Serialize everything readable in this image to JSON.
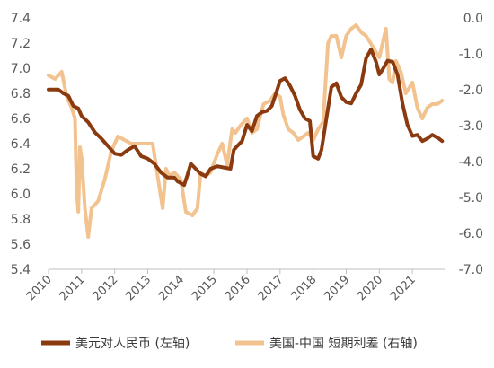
{
  "chart_data": {
    "type": "line",
    "title": "",
    "xlabel": "",
    "ylabel": "",
    "y2label": "",
    "grid": false,
    "legend_position": "bottom",
    "xlim": [
      2010,
      2022.0
    ],
    "ylim": [
      5.4,
      7.4
    ],
    "y2lim": [
      -7.0,
      0.0
    ],
    "x_ticks": [
      2010,
      2011,
      2012,
      2013,
      2014,
      2015,
      2016,
      2017,
      2018,
      2019,
      2020,
      2021
    ],
    "x_tick_labels": [
      "2010",
      "2011",
      "2012",
      "2013",
      "2014",
      "2015",
      "2016",
      "2017",
      "2018",
      "2019",
      "2020",
      "2021"
    ],
    "y_ticks": [
      5.4,
      5.6,
      5.8,
      6.0,
      6.2,
      6.4,
      6.6,
      6.8,
      7.0,
      7.2,
      7.4
    ],
    "y_tick_labels": [
      "5.4",
      "5.6",
      "5.8",
      "6.0",
      "6.2",
      "6.4",
      "6.6",
      "6.8",
      "7.0",
      "7.2",
      "7.4"
    ],
    "y2_ticks": [
      0.0,
      -1.0,
      -2.0,
      -3.0,
      -4.0,
      -5.0,
      -6.0,
      -7.0
    ],
    "y2_tick_labels": [
      "0.0",
      "-1.0",
      "-2.0",
      "-3.0",
      "-4.0",
      "-5.0",
      "-6.0",
      "-7.0"
    ],
    "series": [
      {
        "name": "美元对人民币 (左轴)",
        "axis": "left",
        "color": "#8B3A0F",
        "x": [
          2010.0,
          2010.3,
          2010.45,
          2010.6,
          2010.75,
          2010.9,
          2011.0,
          2011.2,
          2011.4,
          2011.6,
          2011.8,
          2012.0,
          2012.2,
          2012.4,
          2012.6,
          2012.8,
          2013.0,
          2013.2,
          2013.4,
          2013.6,
          2013.8,
          2013.9,
          2014.1,
          2014.2,
          2014.3,
          2014.45,
          2014.6,
          2014.75,
          2014.9,
          2015.1,
          2015.3,
          2015.5,
          2015.6,
          2015.7,
          2015.85,
          2016.0,
          2016.15,
          2016.3,
          2016.45,
          2016.6,
          2016.75,
          2016.9,
          2017.0,
          2017.15,
          2017.3,
          2017.45,
          2017.6,
          2017.75,
          2017.9,
          2018.0,
          2018.15,
          2018.25,
          2018.4,
          2018.55,
          2018.7,
          2018.85,
          2019.0,
          2019.15,
          2019.3,
          2019.45,
          2019.6,
          2019.75,
          2019.9,
          2020.0,
          2020.1,
          2020.25,
          2020.4,
          2020.55,
          2020.7,
          2020.85,
          2021.0,
          2021.15,
          2021.3,
          2021.45,
          2021.6,
          2021.8,
          2021.9
        ],
        "values": [
          6.83,
          6.83,
          6.8,
          6.78,
          6.7,
          6.68,
          6.62,
          6.57,
          6.49,
          6.44,
          6.38,
          6.32,
          6.31,
          6.35,
          6.38,
          6.3,
          6.28,
          6.24,
          6.17,
          6.13,
          6.13,
          6.1,
          6.07,
          6.15,
          6.24,
          6.2,
          6.16,
          6.14,
          6.2,
          6.22,
          6.21,
          6.2,
          6.35,
          6.38,
          6.42,
          6.55,
          6.5,
          6.62,
          6.65,
          6.66,
          6.7,
          6.82,
          6.9,
          6.92,
          6.86,
          6.78,
          6.67,
          6.6,
          6.58,
          6.3,
          6.28,
          6.35,
          6.6,
          6.85,
          6.88,
          6.77,
          6.73,
          6.72,
          6.8,
          6.87,
          7.08,
          7.15,
          7.05,
          6.95,
          6.99,
          7.06,
          7.05,
          6.95,
          6.72,
          6.55,
          6.46,
          6.47,
          6.42,
          6.44,
          6.47,
          6.44,
          6.42
        ]
      },
      {
        "name": "美国-中国 短期利差 (右轴)",
        "axis": "right",
        "color": "#F2C28F",
        "x": [
          2010.0,
          2010.2,
          2010.4,
          2010.55,
          2010.7,
          2010.8,
          2010.85,
          2010.9,
          2010.95,
          2011.0,
          2011.1,
          2011.2,
          2011.3,
          2011.5,
          2011.7,
          2011.9,
          2012.1,
          2012.3,
          2012.5,
          2012.7,
          2012.85,
          2013.0,
          2013.15,
          2013.3,
          2013.45,
          2013.55,
          2013.65,
          2013.8,
          2014.0,
          2014.15,
          2014.35,
          2014.5,
          2014.6,
          2014.75,
          2014.9,
          2015.1,
          2015.25,
          2015.4,
          2015.55,
          2015.65,
          2015.8,
          2016.0,
          2016.15,
          2016.3,
          2016.5,
          2016.7,
          2016.85,
          2017.0,
          2017.1,
          2017.25,
          2017.4,
          2017.55,
          2017.7,
          2017.85,
          2018.0,
          2018.15,
          2018.3,
          2018.45,
          2018.55,
          2018.7,
          2018.85,
          2019.0,
          2019.15,
          2019.3,
          2019.45,
          2019.6,
          2019.8,
          2020.0,
          2020.1,
          2020.2,
          2020.3,
          2020.4,
          2020.5,
          2020.65,
          2020.8,
          2021.0,
          2021.15,
          2021.3,
          2021.45,
          2021.6,
          2021.75,
          2021.9
        ],
        "values": [
          -1.6,
          -1.7,
          -1.5,
          -2.2,
          -2.5,
          -2.8,
          -4.8,
          -5.4,
          -3.6,
          -3.9,
          -5.3,
          -6.1,
          -5.3,
          -5.1,
          -4.5,
          -3.7,
          -3.3,
          -3.4,
          -3.5,
          -3.5,
          -3.5,
          -3.5,
          -3.5,
          -4.4,
          -5.3,
          -4.2,
          -4.4,
          -4.3,
          -4.5,
          -5.4,
          -5.5,
          -5.3,
          -4.3,
          -4.4,
          -4.3,
          -3.8,
          -3.5,
          -4.1,
          -3.1,
          -3.2,
          -3.0,
          -2.8,
          -3.2,
          -3.1,
          -2.4,
          -2.3,
          -2.1,
          -2.2,
          -2.7,
          -3.1,
          -3.2,
          -3.4,
          -3.3,
          -3.2,
          -3.4,
          -3.1,
          -2.9,
          -0.7,
          -0.5,
          -0.5,
          -1.1,
          -0.5,
          -0.3,
          -0.2,
          -0.4,
          -0.5,
          -0.8,
          -1.1,
          -0.7,
          -0.3,
          -1.7,
          -1.8,
          -1.2,
          -1.5,
          -2.1,
          -1.8,
          -2.5,
          -2.8,
          -2.5,
          -2.4,
          -2.4,
          -2.3
        ]
      }
    ]
  }
}
